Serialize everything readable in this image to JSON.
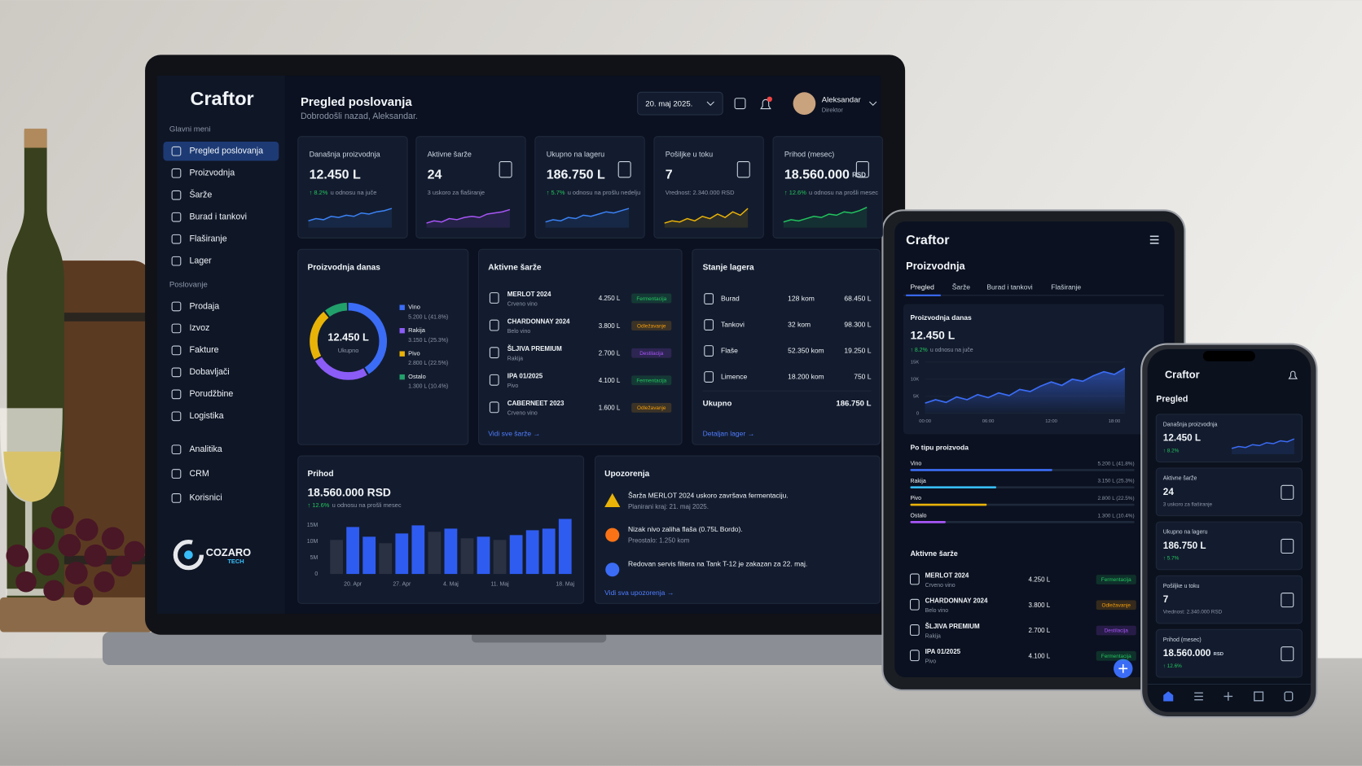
{
  "laptop": {
    "brand": "Craftor",
    "menu": [
      {
        "title": "Glavni meni",
        "items": [
          "Pregled poslovanja",
          "Proizvodnja",
          "Šarže",
          "Burad i tankovi",
          "Flaširanje",
          "Lager"
        ]
      },
      {
        "title": "Poslovanje",
        "items": [
          "Prodaja",
          "Izvoz",
          "Fakture",
          "Dobavljači",
          "Porudžbine",
          "Logistika"
        ]
      },
      {
        "items": [
          "Analitika",
          "CRM",
          "Korisnici"
        ]
      }
    ],
    "logo": {
      "name": "COZARO",
      "tag": "TECH"
    },
    "header": {
      "title": "Pregled poslovanja",
      "subtitle": "Dobrodošli nazad, Aleksandar.",
      "date": "20. maj 2025.",
      "user": "Aleksandar",
      "role": "Direktor"
    },
    "spark_lim": [
      0,
      10
    ],
    "kpis": [
      {
        "label": "Današnja proizvodnja",
        "value": "12.450 L",
        "change": "↑ 8.2%",
        "note": "u odnosu na juče",
        "color": "#3b82f6",
        "trend": [
          3,
          4,
          3.5,
          5,
          4.5,
          5.5,
          5,
          6.5,
          6,
          7,
          7.5,
          8.5
        ]
      },
      {
        "label": "Aktivne šarže",
        "value": "24",
        "note": "3 uskoro za flaširanje",
        "color": "#a855f7",
        "trend": [
          2,
          3,
          2.5,
          4,
          3.5,
          4.5,
          5,
          4.5,
          6,
          6.5,
          7,
          8
        ]
      },
      {
        "label": "Ukupno na lageru",
        "value": "186.750 L",
        "change": "↑ 5.7%",
        "note": "u odnosu na prošlu nedelju",
        "color": "#3b82f6",
        "trend": [
          2.5,
          3.5,
          3,
          4.5,
          4,
          5.5,
          5,
          6,
          7,
          6.5,
          7.5,
          8.5
        ]
      },
      {
        "label": "Pošiljke u toku",
        "value": "7",
        "note": "Vrednost: 2.340.000 RSD",
        "color": "#eab308",
        "trend": [
          2,
          3,
          2.5,
          4,
          3,
          5,
          4,
          6,
          4.5,
          7,
          5.5,
          8.5
        ]
      },
      {
        "label": "Prihod (mesec)",
        "value": "18.560.000",
        "unit": "RSD",
        "change": "↑ 12.6%",
        "note": "u odnosu na prošli mesec",
        "color": "#22c55e",
        "trend": [
          2.5,
          3.5,
          3,
          4,
          5,
          4.5,
          6,
          5.5,
          7,
          6.5,
          7.5,
          9
        ]
      }
    ],
    "production": {
      "title": "Proizvodnja danas",
      "center_value": "12.450 L",
      "center_label": "Ukupno",
      "segments": [
        {
          "name": "Vino",
          "detail": "5.200 L (41.8%)",
          "value": 41.8,
          "color": "#3b6cf6"
        },
        {
          "name": "Rakija",
          "detail": "3.150 L (25.3%)",
          "value": 25.3,
          "color": "#8b5cf6"
        },
        {
          "name": "Pivo",
          "detail": "2.800 L (22.5%)",
          "value": 22.5,
          "color": "#eab308"
        },
        {
          "name": "Ostalo",
          "detail": "1.300 L (10.4%)",
          "value": 10.4,
          "color": "#22a06b"
        }
      ]
    },
    "batches": {
      "title": "Aktivne šarže",
      "rows": [
        {
          "name": "MERLOT 2024",
          "type": "Crveno vino",
          "qty": "4.250 L",
          "status": "Fermentacija",
          "color": "#22c55e"
        },
        {
          "name": "CHARDONNAY 2024",
          "type": "Belo vino",
          "qty": "3.800 L",
          "status": "Odležavanje",
          "color": "#f59e0b"
        },
        {
          "name": "ŠLJIVA PREMIUM",
          "type": "Rakija",
          "qty": "2.700 L",
          "status": "Destilacija",
          "color": "#a855f7"
        },
        {
          "name": "IPA 01/2025",
          "type": "Pivo",
          "qty": "4.100 L",
          "status": "Fermentacija",
          "color": "#22c55e"
        },
        {
          "name": "CABERNEET 2023",
          "type": "Crveno vino",
          "qty": "1.600 L",
          "status": "Odležavanje",
          "color": "#f59e0b"
        }
      ],
      "link": "Vidi sve šarže →"
    },
    "stock": {
      "title": "Stanje lagera",
      "rows": [
        {
          "name": "Burad",
          "count": "128 kom",
          "liters": "68.450 L"
        },
        {
          "name": "Tankovi",
          "count": "32 kom",
          "liters": "98.300 L"
        },
        {
          "name": "Flaše",
          "count": "52.350 kom",
          "liters": "19.250 L"
        },
        {
          "name": "Limence",
          "count": "18.200 kom",
          "liters": "750 L"
        }
      ],
      "total_label": "Ukupno",
      "total": "186.750 L",
      "link": "Detaljan lager →"
    },
    "revenue": {
      "title": "Prihod",
      "value": "18.560.000 RSD",
      "change": "↑ 12.6%",
      "note": "u odnosu na prošli mesec",
      "chart": {
        "type": "bar",
        "categories": [
          null,
          "20. Apr",
          null,
          null,
          "27. Apr",
          null,
          null,
          "4. Maj",
          null,
          null,
          "11. Maj",
          null,
          null,
          null,
          "18. Maj"
        ],
        "values": [
          10.5,
          14.5,
          11.5,
          9.5,
          12.5,
          15,
          13,
          14,
          11,
          11.5,
          10.5,
          12,
          13.5,
          14,
          17
        ],
        "colors": [
          "#2a3142",
          "#2f5cf0",
          "#2f5cf0",
          "#2a3142",
          "#2f5cf0",
          "#2f5cf0",
          "#2a3142",
          "#2f5cf0",
          "#2a3142",
          "#2f5cf0",
          "#2a3142",
          "#2f5cf0",
          "#2f5cf0",
          "#2f5cf0",
          "#2f5cf0"
        ],
        "ylim": [
          0,
          17.5
        ],
        "yticks": [
          {
            "value": 15,
            "label": "15M"
          },
          {
            "value": 10,
            "label": "10M"
          },
          {
            "value": 5,
            "label": "5M"
          },
          0
        ]
      }
    },
    "alerts": {
      "title": "Upozorenja",
      "items": [
        {
          "title": "Šarža MERLOT 2024 uskoro završava fermentaciju.",
          "sub": "Planirani kraj: 21. maj 2025."
        },
        {
          "title": "Nizak nivo zaliha flaša (0.75L Bordo).",
          "sub": "Preostalo: 1.250 kom"
        },
        {
          "title": "Redovan servis filtera na Tank T-12 je zakazan za 22. maj."
        }
      ],
      "link": "Vidi sva upozorenja →"
    }
  },
  "tablet": {
    "brand": "Craftor",
    "title": "Proizvodnja",
    "tabs": [
      "Pregled",
      "Šarže",
      "Burad i tankovi",
      "Flaširanje"
    ],
    "card": {
      "title": "Proizvodnja danas",
      "value": "12.450 L",
      "change": "↑ 8.2%",
      "note": "u odnosu na juče",
      "chart": {
        "type": "line",
        "x": [
          0,
          1,
          2,
          3,
          4,
          5,
          6,
          7,
          8,
          9,
          10,
          11,
          12,
          13,
          14,
          15,
          16,
          17,
          18,
          19
        ],
        "values": [
          3,
          4,
          3.2,
          4.8,
          4,
          5.5,
          4.6,
          6,
          5.2,
          7,
          6.4,
          8,
          9.2,
          8.2,
          10,
          9.4,
          11,
          12.2,
          11.4,
          13.2
        ],
        "color": "#3b6cf6",
        "xlim": [
          0,
          19
        ],
        "xticks": [
          {
            "value": 0,
            "label": "00:00"
          },
          {
            "value": 6,
            "label": "06:00"
          },
          {
            "value": 12,
            "label": "12:00"
          },
          {
            "value": 18,
            "label": "18:00"
          }
        ],
        "ylim": [
          0,
          16
        ],
        "yticks": [
          {
            "value": 15,
            "label": "15K"
          },
          {
            "value": 10,
            "label": "10K"
          },
          {
            "value": 5,
            "label": "5K"
          },
          0
        ],
        "grid": true
      }
    },
    "by_type": {
      "title": "Po tipu proizvoda",
      "xlim": [
        0,
        66
      ],
      "rows": [
        {
          "name": "Vino",
          "detail": "5.200 L (41.8%)",
          "value": 41.8,
          "color": "#3b6cf6"
        },
        {
          "name": "Rakija",
          "detail": "3.150 L (25.3%)",
          "value": 25.3,
          "color": "#38bdf8"
        },
        {
          "name": "Pivo",
          "detail": "2.800 L (22.5%)",
          "value": 22.5,
          "color": "#eab308"
        },
        {
          "name": "Ostalo",
          "detail": "1.300 L (10.4%)",
          "value": 10.4,
          "color": "#a855f7"
        }
      ]
    },
    "batches": {
      "title": "Aktivne šarže",
      "rows": [
        {
          "name": "MERLOT 2024",
          "type": "Crveno vino",
          "qty": "4.250 L",
          "status": "Fermentacija",
          "color": "#22c55e"
        },
        {
          "name": "CHARDONNAY 2024",
          "type": "Belo vino",
          "qty": "3.800 L",
          "status": "Odležavanje",
          "color": "#f59e0b"
        },
        {
          "name": "ŠLJIVA PREMIUM",
          "type": "Rakija",
          "qty": "2.700 L",
          "status": "Destilacija",
          "color": "#a855f7"
        },
        {
          "name": "IPA 01/2025",
          "type": "Pivo",
          "qty": "4.100 L",
          "status": "Fermentacija",
          "color": "#22c55e"
        }
      ]
    }
  },
  "phone": {
    "brand": "Craftor",
    "title": "Pregled",
    "spark_lim": [
      0,
      10
    ],
    "cards": [
      {
        "label": "Današnja proizvodnja",
        "value": "12.450 L",
        "change": "↑ 8.2%",
        "trend": [
          3,
          4,
          3.5,
          5,
          4.5,
          6,
          5.5,
          7,
          6.5,
          8
        ]
      },
      {
        "label": "Aktivne šarže",
        "value": "24",
        "note": "3 uskoro za flaširanje"
      },
      {
        "label": "Ukupno na lageru",
        "value": "186.750 L",
        "change": "↑ 5.7%"
      },
      {
        "label": "Pošiljke u toku",
        "value": "7",
        "note": "Vrednost: 2.340.000 RSD"
      },
      {
        "label": "Prihod (mesec)",
        "value": "18.560.000",
        "unit": "RSD",
        "change": "↑ 12.6%"
      }
    ]
  }
}
